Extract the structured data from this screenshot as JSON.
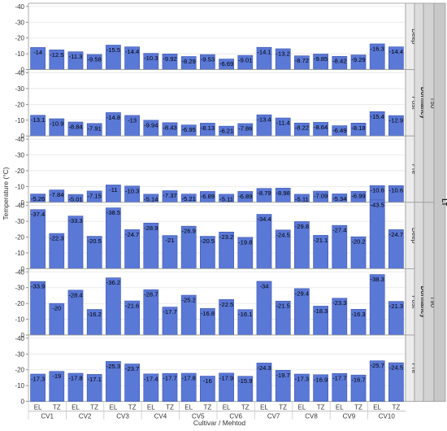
{
  "chart_data": {
    "type": "bar",
    "xlabel": "Cultivar / Mehtod",
    "ylabel": "Temperature (°C)",
    "ylim": [
      0,
      -42
    ],
    "yticks": [
      -40,
      -30,
      -20,
      -10,
      0
    ],
    "cultivars": [
      "CV1",
      "CV2",
      "CV3",
      "CV4",
      "CV5",
      "CV6",
      "CV7",
      "CV8",
      "CV9",
      "CV10"
    ],
    "methods": [
      "EL",
      "TZ"
    ],
    "outer_label": "LT",
    "groups": [
      {
        "name": "T50",
        "dormancy_label": "Dormancy",
        "panels": [
          {
            "name": "Deep",
            "values": [
              -14,
              -12.5,
              -11.3,
              -9.58,
              -15.5,
              -14.4,
              -10.3,
              -9.92,
              -8.29,
              -9.53,
              -6.69,
              -9.01,
              -14.1,
              -13.2,
              -8.72,
              -9.85,
              -8.42,
              -9.29,
              -16.3,
              -14.4
            ]
          },
          {
            "name": "Post",
            "values": [
              -13.1,
              -10.9,
              -8.84,
              -7.91,
              -14.8,
              -13,
              -9.94,
              -8.43,
              -6.95,
              -8.13,
              -6.21,
              -7.86,
              -13.4,
              -11.4,
              -8.22,
              -8.64,
              -6.49,
              -8.18,
              -15.4,
              -12.9
            ]
          },
          {
            "name": "Pre",
            "values": [
              -5.26,
              -7.84,
              -5.01,
              -7.15,
              -11,
              -10.3,
              -5.14,
              -7.37,
              -5.21,
              -6.89,
              -5.11,
              -6.89,
              -8.79,
              -8.98,
              -5.11,
              -7.09,
              -5.34,
              -6.99,
              -10.6,
              -10.6
            ]
          }
        ]
      },
      {
        "name": "T90",
        "dormancy_label": "Dormancy",
        "panels": [
          {
            "name": "Deep",
            "values": [
              -37.4,
              -22.3,
              -33.3,
              -20.5,
              -38.5,
              -24.7,
              -28.9,
              -21,
              -26.9,
              -20.5,
              -23.2,
              -19.8,
              -34.4,
              -24.5,
              -29.8,
              -21.1,
              -27.4,
              -20.2,
              -43.5,
              -24.7
            ]
          },
          {
            "name": "Post",
            "values": [
              -33.9,
              -20,
              -28.4,
              -16.2,
              -36.2,
              -21.6,
              -28.7,
              -17.7,
              -25.2,
              -16.8,
              -22.5,
              -16.1,
              -34,
              -21.5,
              -29.4,
              -18.3,
              -23.3,
              -16.3,
              -38.3,
              -21.3
            ]
          },
          {
            "name": "Pre",
            "values": [
              -17.3,
              -19,
              -17.8,
              -17.1,
              -25.3,
              -23.7,
              -17.4,
              -17.7,
              -17.8,
              -16,
              -17.9,
              -15.9,
              -24.3,
              -19.7,
              -17.3,
              -16.9,
              -17.7,
              -16.7,
              -25.7,
              -24.5
            ]
          }
        ]
      }
    ],
    "bar_color": "#5a78d6",
    "bar_edge": "#3a55b0",
    "grid": true
  }
}
